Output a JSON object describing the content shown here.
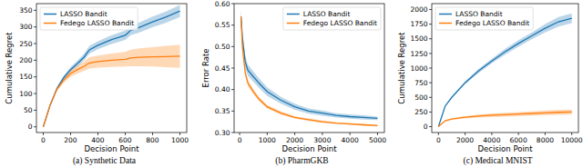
{
  "chart_data": [
    {
      "type": "line",
      "title": "(a) Synthetic Data",
      "x_label": "Decision Point",
      "y_label": "Cumulative Regret",
      "x": [
        0,
        50,
        100,
        150,
        200,
        250,
        300,
        320,
        340,
        400,
        500,
        600,
        620,
        640,
        700,
        800,
        900,
        1000
      ],
      "series": [
        {
          "name": "LASSO Bandit",
          "color": "#1f77b4",
          "values": [
            0,
            65,
            115,
            148,
            172,
            190,
            210,
            222,
            232,
            245,
            262,
            275,
            282,
            290,
            298,
            315,
            330,
            348
          ],
          "lower": [
            0,
            63,
            111,
            142,
            164,
            181,
            200,
            211,
            220,
            233,
            249,
            261,
            268,
            275,
            283,
            299,
            313,
            330
          ],
          "upper": [
            0,
            67,
            119,
            154,
            180,
            199,
            220,
            233,
            244,
            257,
            275,
            289,
            296,
            305,
            313,
            331,
            347,
            366
          ]
        },
        {
          "name": "Fedego LASSO Bandit",
          "color": "#ff7f0e",
          "values": [
            0,
            65,
            113,
            140,
            160,
            172,
            182,
            188,
            192,
            196,
            200,
            203,
            205,
            207,
            209,
            210,
            211,
            212
          ],
          "lower": [
            0,
            63,
            108,
            132,
            150,
            160,
            168,
            172,
            175,
            178,
            180,
            181,
            182,
            182,
            182,
            181,
            179,
            177
          ],
          "upper": [
            0,
            67,
            118,
            148,
            170,
            184,
            196,
            204,
            209,
            214,
            220,
            225,
            228,
            232,
            236,
            239,
            243,
            247
          ]
        }
      ],
      "xlim": [
        -50,
        1050
      ],
      "ylim": [
        -17,
        370
      ],
      "xticks": [
        0,
        200,
        400,
        600,
        800,
        1000
      ],
      "yticks": [
        0,
        50,
        100,
        150,
        200,
        250,
        300,
        350
      ],
      "legend": "upper left",
      "grid": false
    },
    {
      "type": "line",
      "title": "(b) PharmGKB",
      "x_label": "Decision Point",
      "y_label": "Error Rate",
      "x": [
        50,
        100,
        200,
        300,
        500,
        700,
        1000,
        1500,
        2000,
        2500,
        3000,
        3500,
        4000,
        4500,
        5000
      ],
      "series": [
        {
          "name": "LASSO Bandit",
          "color": "#1f77b4",
          "values": [
            0.57,
            0.52,
            0.465,
            0.445,
            0.43,
            0.415,
            0.395,
            0.375,
            0.36,
            0.35,
            0.345,
            0.34,
            0.337,
            0.335,
            0.333
          ],
          "lower": [
            0.555,
            0.505,
            0.45,
            0.432,
            0.418,
            0.404,
            0.385,
            0.367,
            0.353,
            0.344,
            0.339,
            0.335,
            0.332,
            0.33,
            0.329
          ],
          "upper": [
            0.585,
            0.535,
            0.48,
            0.458,
            0.442,
            0.426,
            0.405,
            0.383,
            0.367,
            0.356,
            0.351,
            0.345,
            0.342,
            0.34,
            0.337
          ]
        },
        {
          "name": "Fedego LASSO Bandit",
          "color": "#ff7f0e",
          "values": [
            0.57,
            0.5,
            0.44,
            0.415,
            0.395,
            0.378,
            0.36,
            0.345,
            0.335,
            0.33,
            0.325,
            0.322,
            0.32,
            0.318,
            0.316
          ],
          "lower": [
            0.56,
            0.49,
            0.432,
            0.408,
            0.389,
            0.373,
            0.356,
            0.341,
            0.332,
            0.327,
            0.322,
            0.32,
            0.318,
            0.316,
            0.314
          ],
          "upper": [
            0.58,
            0.51,
            0.448,
            0.422,
            0.401,
            0.383,
            0.364,
            0.349,
            0.338,
            0.333,
            0.328,
            0.324,
            0.322,
            0.32,
            0.318
          ]
        }
      ],
      "xlim": [
        -200,
        5250
      ],
      "ylim": [
        0.3,
        0.6
      ],
      "xticks": [
        0,
        1000,
        2000,
        3000,
        4000,
        5000
      ],
      "yticks": [
        {
          "value": 0.3,
          "label": "0.30"
        },
        0.35,
        {
          "value": 0.4,
          "label": "0.40"
        },
        0.45,
        {
          "value": 0.5,
          "label": "0.50"
        },
        0.55,
        {
          "value": 0.6,
          "label": "0.60"
        }
      ],
      "legend": "upper right",
      "grid": false
    },
    {
      "type": "line",
      "title": "(c) Medical MNIST",
      "x_label": "Decision Point",
      "y_label": "Cumulative Regret",
      "x": [
        0,
        500,
        1000,
        2000,
        3000,
        4000,
        5000,
        6000,
        7000,
        8000,
        9000,
        10000
      ],
      "series": [
        {
          "name": "LASSO Bandit",
          "color": "#1f77b4",
          "values": [
            0,
            350,
            500,
            750,
            950,
            1120,
            1280,
            1420,
            1550,
            1680,
            1790,
            1850
          ],
          "lower": [
            0,
            340,
            485,
            725,
            915,
            1080,
            1230,
            1365,
            1490,
            1610,
            1710,
            1765
          ],
          "upper": [
            0,
            360,
            515,
            775,
            985,
            1160,
            1330,
            1475,
            1610,
            1750,
            1870,
            1935
          ]
        },
        {
          "name": "Fedego LASSO Bandit",
          "color": "#ff7f0e",
          "values": [
            0,
            100,
            130,
            160,
            180,
            195,
            205,
            215,
            225,
            235,
            245,
            250
          ],
          "lower": [
            0,
            90,
            115,
            140,
            155,
            165,
            172,
            180,
            188,
            195,
            203,
            207
          ],
          "upper": [
            0,
            110,
            145,
            180,
            205,
            225,
            238,
            250,
            262,
            275,
            287,
            293
          ]
        }
      ],
      "xlim": [
        -500,
        10500
      ],
      "ylim": [
        -100,
        2100
      ],
      "xticks": [
        0,
        2000,
        4000,
        6000,
        8000,
        10000
      ],
      "yticks": [
        0,
        250,
        500,
        750,
        1000,
        1250,
        1500,
        1750,
        2000
      ],
      "legend": "upper left",
      "grid": false
    }
  ]
}
